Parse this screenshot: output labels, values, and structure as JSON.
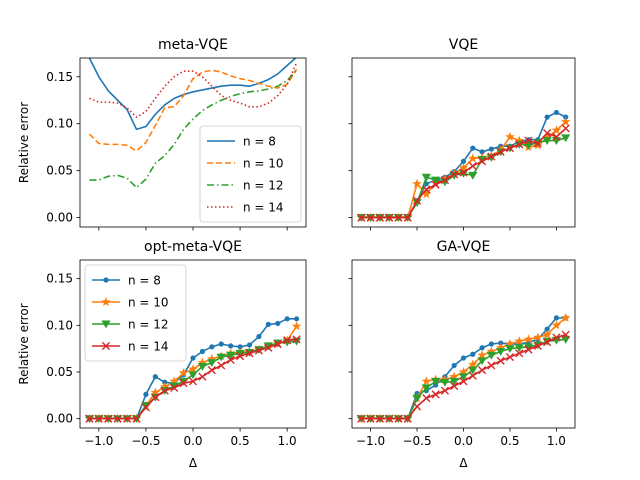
{
  "chart_data": [
    {
      "type": "line",
      "title": "meta-VQE",
      "xlabel": "",
      "ylabel": "Relative error",
      "xlim": [
        -1.2,
        1.2
      ],
      "ylim": [
        -0.01,
        0.17
      ],
      "xticks": [
        -1.0,
        -0.5,
        0.0,
        0.5,
        1.0
      ],
      "xtick_labels": [
        "",
        "",
        "",
        "",
        ""
      ],
      "yticks": [
        0.0,
        0.05,
        0.1,
        0.15
      ],
      "ytick_labels": [
        "0.00",
        "0.05",
        "0.10",
        "0.15"
      ],
      "markers": false,
      "legend": "lower-right",
      "series": [
        {
          "name": "n = 8",
          "color": "#1f77b4",
          "dash": "solid",
          "x": [
            -1.1,
            -1.0,
            -0.9,
            -0.8,
            -0.7,
            -0.6,
            -0.5,
            -0.4,
            -0.3,
            -0.2,
            -0.1,
            0.0,
            0.1,
            0.2,
            0.3,
            0.4,
            0.5,
            0.6,
            0.7,
            0.8,
            0.9,
            1.0,
            1.1
          ],
          "y": [
            0.17,
            0.15,
            0.135,
            0.125,
            0.115,
            0.094,
            0.097,
            0.11,
            0.12,
            0.127,
            0.131,
            0.134,
            0.136,
            0.138,
            0.14,
            0.141,
            0.141,
            0.14,
            0.143,
            0.147,
            0.153,
            0.162,
            0.171
          ]
        },
        {
          "name": "n = 10",
          "color": "#ff7f0e",
          "dash": "dashed",
          "x": [
            -1.1,
            -1.0,
            -0.9,
            -0.8,
            -0.7,
            -0.6,
            -0.5,
            -0.4,
            -0.3,
            -0.2,
            -0.1,
            0.0,
            0.1,
            0.2,
            0.3,
            0.4,
            0.5,
            0.6,
            0.7,
            0.8,
            0.9,
            1.0,
            1.1
          ],
          "y": [
            0.089,
            0.079,
            0.078,
            0.078,
            0.077,
            0.071,
            0.08,
            0.098,
            0.117,
            0.118,
            0.13,
            0.148,
            0.155,
            0.157,
            0.155,
            0.151,
            0.148,
            0.146,
            0.143,
            0.14,
            0.138,
            0.142,
            0.158
          ]
        },
        {
          "name": "n = 12",
          "color": "#2ca02c",
          "dash": "dashdot",
          "x": [
            -1.1,
            -1.0,
            -0.9,
            -0.8,
            -0.7,
            -0.6,
            -0.5,
            -0.4,
            -0.3,
            -0.2,
            -0.1,
            0.0,
            0.1,
            0.2,
            0.3,
            0.4,
            0.5,
            0.6,
            0.7,
            0.8,
            0.9,
            1.0,
            1.1
          ],
          "y": [
            0.04,
            0.04,
            0.044,
            0.045,
            0.042,
            0.032,
            0.041,
            0.058,
            0.066,
            0.078,
            0.094,
            0.105,
            0.114,
            0.12,
            0.125,
            0.129,
            0.132,
            0.134,
            0.135,
            0.137,
            0.14,
            0.146,
            0.157
          ]
        },
        {
          "name": "n = 14",
          "color": "#d62728",
          "dash": "dotted",
          "x": [
            -1.1,
            -1.0,
            -0.9,
            -0.8,
            -0.7,
            -0.6,
            -0.5,
            -0.4,
            -0.3,
            -0.2,
            -0.1,
            0.0,
            0.1,
            0.2,
            0.3,
            0.4,
            0.5,
            0.6,
            0.7,
            0.8,
            0.9,
            1.0,
            1.1
          ],
          "y": [
            0.127,
            0.123,
            0.123,
            0.122,
            0.117,
            0.107,
            0.113,
            0.127,
            0.14,
            0.15,
            0.156,
            0.156,
            0.15,
            0.14,
            0.13,
            0.125,
            0.122,
            0.118,
            0.118,
            0.122,
            0.13,
            0.142,
            0.165
          ]
        }
      ]
    },
    {
      "type": "line",
      "title": "VQE",
      "xlabel": "",
      "ylabel": "",
      "xlim": [
        -1.2,
        1.2
      ],
      "ylim": [
        -0.01,
        0.17
      ],
      "xticks": [
        -1.0,
        -0.5,
        0.0,
        0.5,
        1.0
      ],
      "xtick_labels": [
        "",
        "",
        "",
        "",
        ""
      ],
      "yticks": [
        0.0,
        0.05,
        0.1,
        0.15
      ],
      "ytick_labels": [
        "",
        "",
        "",
        ""
      ],
      "markers": true,
      "legend": "none",
      "series": [
        {
          "name": "n = 8",
          "color": "#1f77b4",
          "marker": "dot",
          "x": [
            -1.1,
            -1.0,
            -0.9,
            -0.8,
            -0.7,
            -0.6,
            -0.5,
            -0.4,
            -0.3,
            -0.2,
            -0.1,
            0.0,
            0.1,
            0.2,
            0.3,
            0.4,
            0.5,
            0.6,
            0.7,
            0.8,
            0.9,
            1.0,
            1.1
          ],
          "y": [
            0.0,
            0.0,
            0.0,
            0.0,
            0.0,
            0.0,
            0.018,
            0.036,
            0.04,
            0.043,
            0.049,
            0.06,
            0.074,
            0.07,
            0.073,
            0.076,
            0.076,
            0.081,
            0.083,
            0.083,
            0.107,
            0.112,
            0.107
          ]
        },
        {
          "name": "n = 10",
          "color": "#ff7f0e",
          "marker": "star",
          "x": [
            -1.1,
            -1.0,
            -0.9,
            -0.8,
            -0.7,
            -0.6,
            -0.5,
            -0.4,
            -0.3,
            -0.2,
            -0.1,
            0.0,
            0.1,
            0.2,
            0.3,
            0.4,
            0.5,
            0.6,
            0.7,
            0.8,
            0.9,
            1.0,
            1.1
          ],
          "y": [
            0.0,
            0.0,
            0.0,
            0.0,
            0.0,
            0.0,
            0.036,
            0.025,
            0.037,
            0.041,
            0.047,
            0.053,
            0.063,
            0.064,
            0.066,
            0.072,
            0.086,
            0.082,
            0.075,
            0.077,
            0.085,
            0.093,
            0.102
          ]
        },
        {
          "name": "n = 12",
          "color": "#2ca02c",
          "marker": "triangle",
          "x": [
            -1.1,
            -1.0,
            -0.9,
            -0.8,
            -0.7,
            -0.6,
            -0.5,
            -0.4,
            -0.3,
            -0.2,
            -0.1,
            0.0,
            0.1,
            0.2,
            0.3,
            0.4,
            0.5,
            0.6,
            0.7,
            0.8,
            0.9,
            1.0,
            1.1
          ],
          "y": [
            0.0,
            0.0,
            0.0,
            0.0,
            0.0,
            0.0,
            0.016,
            0.043,
            0.04,
            0.038,
            0.045,
            0.047,
            0.045,
            0.062,
            0.064,
            0.07,
            0.074,
            0.078,
            0.077,
            0.08,
            0.082,
            0.082,
            0.085
          ]
        },
        {
          "name": "n = 14",
          "color": "#d62728",
          "marker": "x",
          "x": [
            -1.1,
            -1.0,
            -0.9,
            -0.8,
            -0.7,
            -0.6,
            -0.5,
            -0.4,
            -0.3,
            -0.2,
            -0.1,
            0.0,
            0.1,
            0.2,
            0.3,
            0.4,
            0.5,
            0.6,
            0.7,
            0.8,
            0.9,
            1.0,
            1.1
          ],
          "y": [
            0.0,
            0.0,
            0.0,
            0.0,
            0.0,
            0.0,
            0.018,
            0.03,
            0.035,
            0.04,
            0.046,
            0.048,
            0.055,
            0.06,
            0.065,
            0.07,
            0.074,
            0.078,
            0.082,
            0.079,
            0.09,
            0.086,
            0.095
          ]
        }
      ]
    },
    {
      "type": "line",
      "title": "opt-meta-VQE",
      "xlabel": "Δ",
      "ylabel": "Relative error",
      "xlim": [
        -1.2,
        1.2
      ],
      "ylim": [
        -0.01,
        0.17
      ],
      "xticks": [
        -1.0,
        -0.5,
        0.0,
        0.5,
        1.0
      ],
      "xtick_labels": [
        "−1.0",
        "−0.5",
        "0.0",
        "0.5",
        "1.0"
      ],
      "yticks": [
        0.0,
        0.05,
        0.1,
        0.15
      ],
      "ytick_labels": [
        "0.00",
        "0.05",
        "0.10",
        "0.15"
      ],
      "markers": true,
      "legend": "upper-left",
      "series": [
        {
          "name": "n = 8",
          "color": "#1f77b4",
          "marker": "dot",
          "x": [
            -1.1,
            -1.0,
            -0.9,
            -0.8,
            -0.7,
            -0.6,
            -0.5,
            -0.4,
            -0.3,
            -0.2,
            -0.1,
            0.0,
            0.1,
            0.2,
            0.3,
            0.4,
            0.5,
            0.6,
            0.7,
            0.8,
            0.9,
            1.0,
            1.1
          ],
          "y": [
            0.0,
            0.0,
            0.0,
            0.0,
            0.0,
            0.0,
            0.026,
            0.045,
            0.039,
            0.038,
            0.047,
            0.065,
            0.072,
            0.077,
            0.08,
            0.078,
            0.077,
            0.079,
            0.088,
            0.101,
            0.102,
            0.107,
            0.107
          ]
        },
        {
          "name": "n = 10",
          "color": "#ff7f0e",
          "marker": "star",
          "x": [
            -1.1,
            -1.0,
            -0.9,
            -0.8,
            -0.7,
            -0.6,
            -0.5,
            -0.4,
            -0.3,
            -0.2,
            -0.1,
            0.0,
            0.1,
            0.2,
            0.3,
            0.4,
            0.5,
            0.6,
            0.7,
            0.8,
            0.9,
            1.0,
            1.1
          ],
          "y": [
            0.0,
            0.0,
            0.0,
            0.0,
            0.0,
            0.0,
            0.014,
            0.028,
            0.034,
            0.04,
            0.049,
            0.053,
            0.06,
            0.064,
            0.067,
            0.07,
            0.071,
            0.072,
            0.074,
            0.077,
            0.08,
            0.084,
            0.099
          ]
        },
        {
          "name": "n = 12",
          "color": "#2ca02c",
          "marker": "triangle",
          "x": [
            -1.1,
            -1.0,
            -0.9,
            -0.8,
            -0.7,
            -0.6,
            -0.5,
            -0.4,
            -0.3,
            -0.2,
            -0.1,
            0.0,
            0.1,
            0.2,
            0.3,
            0.4,
            0.5,
            0.6,
            0.7,
            0.8,
            0.9,
            1.0,
            1.1
          ],
          "y": [
            0.0,
            0.0,
            0.0,
            0.0,
            0.0,
            0.0,
            0.014,
            0.023,
            0.03,
            0.035,
            0.04,
            0.047,
            0.056,
            0.06,
            0.066,
            0.068,
            0.07,
            0.071,
            0.074,
            0.078,
            0.081,
            0.082,
            0.083
          ]
        },
        {
          "name": "n = 14",
          "color": "#d62728",
          "marker": "x",
          "x": [
            -1.1,
            -1.0,
            -0.9,
            -0.8,
            -0.7,
            -0.6,
            -0.5,
            -0.4,
            -0.3,
            -0.2,
            -0.1,
            0.0,
            0.1,
            0.2,
            0.3,
            0.4,
            0.5,
            0.6,
            0.7,
            0.8,
            0.9,
            1.0,
            1.1
          ],
          "y": [
            0.0,
            0.0,
            0.0,
            0.0,
            0.0,
            0.0,
            0.012,
            0.023,
            0.03,
            0.033,
            0.038,
            0.04,
            0.045,
            0.052,
            0.057,
            0.063,
            0.067,
            0.07,
            0.073,
            0.076,
            0.08,
            0.084,
            0.085
          ]
        }
      ]
    },
    {
      "type": "line",
      "title": "GA-VQE",
      "xlabel": "Δ",
      "ylabel": "",
      "xlim": [
        -1.2,
        1.2
      ],
      "ylim": [
        -0.01,
        0.17
      ],
      "xticks": [
        -1.0,
        -0.5,
        0.0,
        0.5,
        1.0
      ],
      "xtick_labels": [
        "−1.0",
        "−0.5",
        "0.0",
        "0.5",
        "1.0"
      ],
      "yticks": [
        0.0,
        0.05,
        0.1,
        0.15
      ],
      "ytick_labels": [
        "",
        "",
        "",
        ""
      ],
      "markers": true,
      "legend": "none",
      "series": [
        {
          "name": "n = 8",
          "color": "#1f77b4",
          "marker": "dot",
          "x": [
            -1.1,
            -1.0,
            -0.9,
            -0.8,
            -0.7,
            -0.6,
            -0.5,
            -0.4,
            -0.3,
            -0.2,
            -0.1,
            0.0,
            0.1,
            0.2,
            0.3,
            0.4,
            0.5,
            0.6,
            0.7,
            0.8,
            0.9,
            1.0,
            1.1
          ],
          "y": [
            0.0,
            0.0,
            0.0,
            0.0,
            0.0,
            0.0,
            0.027,
            0.03,
            0.036,
            0.045,
            0.057,
            0.065,
            0.069,
            0.076,
            0.08,
            0.081,
            0.08,
            0.08,
            0.082,
            0.085,
            0.096,
            0.108,
            0.108
          ]
        },
        {
          "name": "n = 10",
          "color": "#ff7f0e",
          "marker": "star",
          "x": [
            -1.1,
            -1.0,
            -0.9,
            -0.8,
            -0.7,
            -0.6,
            -0.5,
            -0.4,
            -0.3,
            -0.2,
            -0.1,
            0.0,
            0.1,
            0.2,
            0.3,
            0.4,
            0.5,
            0.6,
            0.7,
            0.8,
            0.9,
            1.0,
            1.1
          ],
          "y": [
            0.0,
            0.0,
            0.0,
            0.0,
            0.0,
            0.0,
            0.022,
            0.04,
            0.042,
            0.042,
            0.045,
            0.05,
            0.058,
            0.068,
            0.072,
            0.076,
            0.08,
            0.083,
            0.085,
            0.087,
            0.09,
            0.1,
            0.108
          ]
        },
        {
          "name": "n = 12",
          "color": "#2ca02c",
          "marker": "triangle",
          "x": [
            -1.1,
            -1.0,
            -0.9,
            -0.8,
            -0.7,
            -0.6,
            -0.5,
            -0.4,
            -0.3,
            -0.2,
            -0.1,
            0.0,
            0.1,
            0.2,
            0.3,
            0.4,
            0.5,
            0.6,
            0.7,
            0.8,
            0.9,
            1.0,
            1.1
          ],
          "y": [
            0.0,
            0.0,
            0.0,
            0.0,
            0.0,
            0.0,
            0.022,
            0.033,
            0.04,
            0.039,
            0.04,
            0.045,
            0.052,
            0.062,
            0.068,
            0.072,
            0.075,
            0.076,
            0.077,
            0.079,
            0.083,
            0.084,
            0.085
          ]
        },
        {
          "name": "n = 14",
          "color": "#d62728",
          "marker": "x",
          "x": [
            -1.1,
            -1.0,
            -0.9,
            -0.8,
            -0.7,
            -0.6,
            -0.5,
            -0.4,
            -0.3,
            -0.2,
            -0.1,
            0.0,
            0.1,
            0.2,
            0.3,
            0.4,
            0.5,
            0.6,
            0.7,
            0.8,
            0.9,
            1.0,
            1.1
          ],
          "y": [
            0.0,
            0.0,
            0.0,
            0.0,
            0.0,
            0.0,
            0.013,
            0.022,
            0.026,
            0.03,
            0.035,
            0.04,
            0.046,
            0.052,
            0.057,
            0.062,
            0.066,
            0.07,
            0.074,
            0.078,
            0.082,
            0.087,
            0.09
          ]
        }
      ]
    }
  ]
}
